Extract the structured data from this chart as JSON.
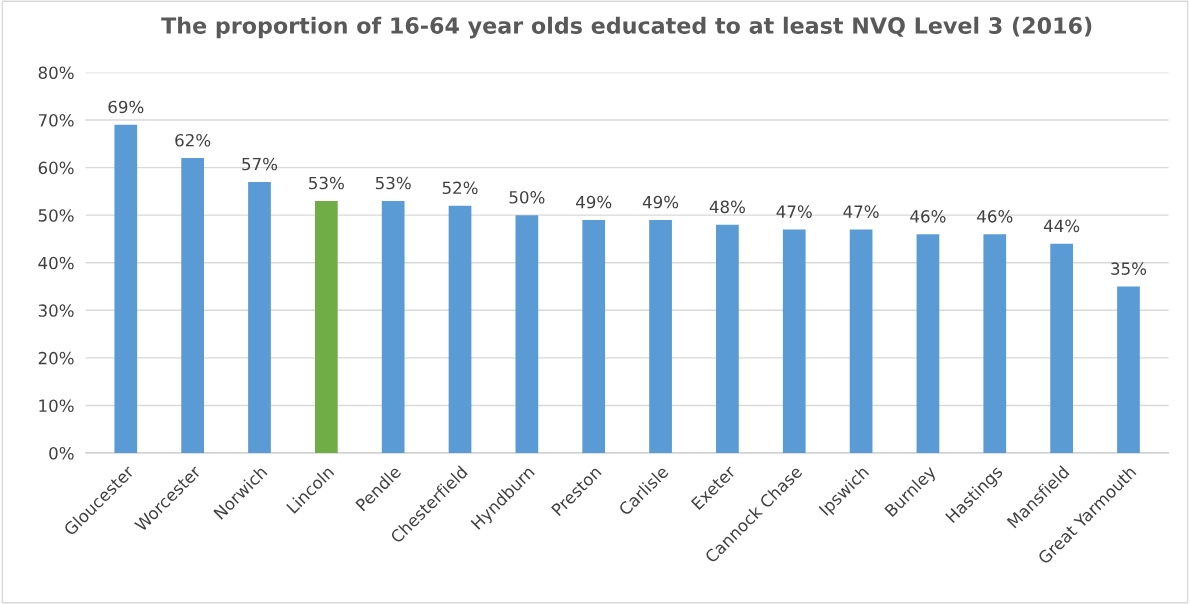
{
  "chart_data": {
    "type": "bar",
    "title": "The proportion of 16-64 year olds educated to at least NVQ Level 3 (2016)",
    "categories": [
      "Gloucester",
      "Worcester",
      "Norwich",
      "Lincoln",
      "Pendle",
      "Chesterfield",
      "Hyndburn",
      "Preston",
      "Carlisle",
      "Exeter",
      "Cannock Chase",
      "Ipswich",
      "Burnley",
      "Hastings",
      "Mansfield",
      "Great Yarmouth"
    ],
    "values": [
      69,
      62,
      57,
      53,
      53,
      52,
      50,
      49,
      49,
      48,
      47,
      47,
      46,
      46,
      44,
      35
    ],
    "colors": [
      "#5b9bd5",
      "#5b9bd5",
      "#5b9bd5",
      "#70ad47",
      "#5b9bd5",
      "#5b9bd5",
      "#5b9bd5",
      "#5b9bd5",
      "#5b9bd5",
      "#5b9bd5",
      "#5b9bd5",
      "#5b9bd5",
      "#5b9bd5",
      "#5b9bd5",
      "#5b9bd5",
      "#5b9bd5"
    ],
    "value_labels": [
      "69%",
      "62%",
      "57%",
      "53%",
      "53%",
      "52%",
      "50%",
      "49%",
      "49%",
      "48%",
      "47%",
      "47%",
      "46%",
      "46%",
      "44%",
      "35%"
    ],
    "ylim": [
      0,
      80
    ],
    "yticks": [
      {
        "value": 0,
        "label": "0%"
      },
      {
        "value": 10,
        "label": "10%"
      },
      {
        "value": 20,
        "label": "20%"
      },
      {
        "value": 30,
        "label": "30%"
      },
      {
        "value": 40,
        "label": "40%"
      },
      {
        "value": 50,
        "label": "50%"
      },
      {
        "value": 60,
        "label": "60%"
      },
      {
        "value": 70,
        "label": "70%"
      },
      {
        "value": 80,
        "label": "80%"
      }
    ],
    "grid": "y",
    "legend": false
  }
}
